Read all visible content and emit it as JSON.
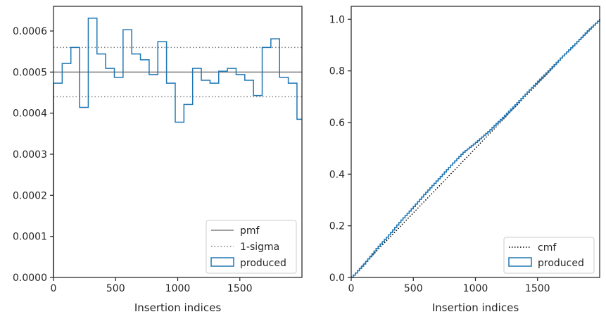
{
  "chart_data": [
    {
      "type": "line",
      "xlabel": "Insertion indices",
      "ylabel": "",
      "xlim": [
        0,
        2000
      ],
      "ylim": [
        0,
        0.00066
      ],
      "xticks": [
        0,
        500,
        1000,
        1500
      ],
      "xtick_labels": [
        "0",
        "500",
        "1000",
        "1500"
      ],
      "yticks": [
        0,
        0.0001,
        0.0002,
        0.0003,
        0.0004,
        0.0005,
        0.0006
      ],
      "ytick_labels": [
        "0.0000",
        "0.0001",
        "0.0002",
        "0.0003",
        "0.0004",
        "0.0005",
        "0.0006"
      ],
      "grid": false,
      "legend_position": "lower-right",
      "reference_lines": [
        {
          "name": "pmf",
          "y": 0.0005,
          "style": "solid",
          "color": "#7f7f7f"
        },
        {
          "name": "1-sigma",
          "y": 0.00056,
          "style": "dotted",
          "color": "#7f7f7f"
        },
        {
          "name": "1-sigma",
          "y": 0.00044,
          "style": "dotted",
          "color": "#7f7f7f"
        }
      ],
      "legend": [
        "pmf",
        "1-sigma",
        "produced"
      ],
      "series": [
        {
          "name": "produced",
          "style": "step",
          "color": "#1f77b4",
          "bin_edges": [
            0,
            70,
            140,
            210,
            280,
            350,
            420,
            490,
            560,
            630,
            700,
            770,
            840,
            910,
            980,
            1050,
            1120,
            1190,
            1260,
            1330,
            1400,
            1470,
            1540,
            1610,
            1680,
            1750,
            1820,
            1890,
            1960,
            2000
          ],
          "values": [
            0.000473,
            0.000521,
            0.00056,
            0.000414,
            0.000631,
            0.000544,
            0.000509,
            0.000487,
            0.000603,
            0.000544,
            0.00053,
            0.000494,
            0.000574,
            0.000473,
            0.000378,
            0.000421,
            0.000509,
            0.00048,
            0.000473,
            0.000502,
            0.000509,
            0.000494,
            0.00048,
            0.000443,
            0.00056,
            0.000581,
            0.000487,
            0.000473,
            0.000385
          ]
        }
      ]
    },
    {
      "type": "line",
      "xlabel": "Insertion indices",
      "ylabel": "",
      "xlim": [
        0,
        2000
      ],
      "ylim": [
        0,
        1.05
      ],
      "xticks": [
        0,
        500,
        1000,
        1500
      ],
      "xtick_labels": [
        "0",
        "500",
        "1000",
        "1500"
      ],
      "yticks": [
        0,
        0.2,
        0.4,
        0.6,
        0.8,
        1.0
      ],
      "ytick_labels": [
        "0.0",
        "0.2",
        "0.4",
        "0.6",
        "0.8",
        "1.0"
      ],
      "grid": false,
      "legend_position": "lower-right",
      "legend": [
        "cmf",
        "produced"
      ],
      "series": [
        {
          "name": "cmf",
          "style": "dotted",
          "color": "#000000",
          "x": [
            0,
            2000
          ],
          "y": [
            0,
            1.0
          ]
        },
        {
          "name": "produced",
          "style": "step",
          "color": "#1f77b4",
          "x": [
            0,
            100,
            200,
            300,
            400,
            500,
            600,
            700,
            800,
            900,
            1000,
            1100,
            1200,
            1300,
            1400,
            1500,
            1600,
            1700,
            1800,
            1900,
            2000
          ],
          "y": [
            0,
            0.052,
            0.112,
            0.165,
            0.222,
            0.275,
            0.33,
            0.382,
            0.435,
            0.485,
            0.523,
            0.565,
            0.612,
            0.66,
            0.71,
            0.76,
            0.808,
            0.858,
            0.905,
            0.955,
            1.0
          ]
        }
      ]
    }
  ]
}
